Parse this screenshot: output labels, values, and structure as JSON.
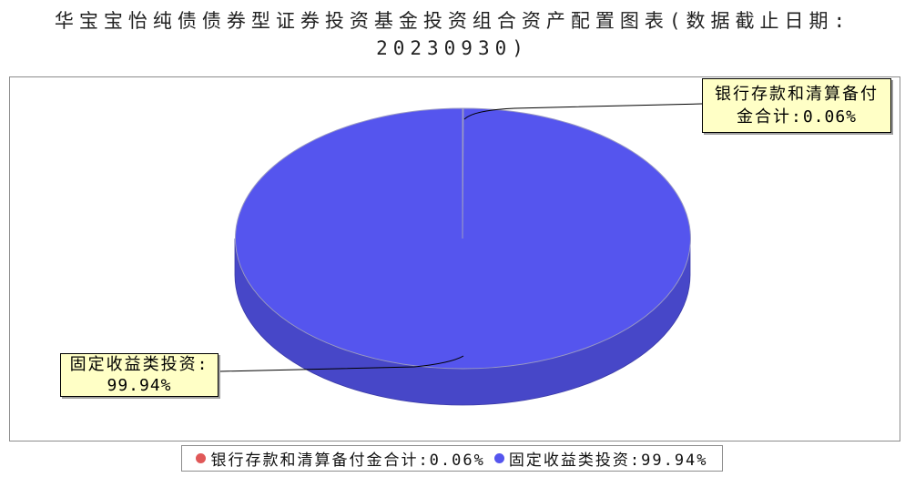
{
  "chart_data": {
    "type": "pie",
    "style": "3d",
    "title": "华宝宝怡纯债债券型证券投资基金投资组合资产配置图表(数据截止日期:20230930)",
    "unit": "%",
    "slices": [
      {
        "label": "银行存款和清算备付金合计",
        "value": 0.06,
        "color": "#e05858"
      },
      {
        "label": "固定收益类投资",
        "value": 99.94,
        "color": "#5555ee"
      }
    ],
    "data_labels": true,
    "legend_position": "bottom"
  }
}
